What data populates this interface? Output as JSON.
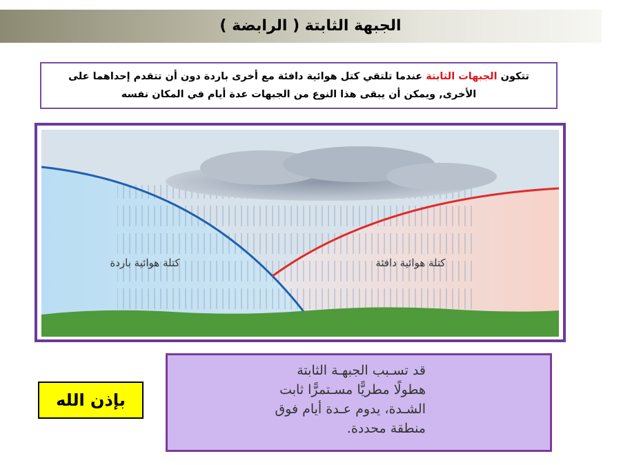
{
  "header": {
    "title": "الجبهة الثابتة ( الرابضة )"
  },
  "intro": {
    "before": "تتكون ",
    "highlight": "الجبهات الثابتة",
    "after": " عندما تلتقي كتل هوائية دافئة مع أخرى باردة دون أن تتقدم إحداهما على الأخرى, ويمكن أن يبقى هذا النوع من الجبهات عدة أيام في المكان نفسه"
  },
  "diagram": {
    "cold_label": "كتلة هوائية باردة",
    "warm_label": "كتلة هوائية دافئة"
  },
  "note": {
    "lines": [
      "قد تسـبب الجبهـة الثابتة",
      "هطولًا مطريًّا مسـتمرًّا ثابت",
      "الشـدة، يدوم عـدة أيام فوق",
      "منطقة محددة."
    ]
  },
  "badge": {
    "text": "بإذن الله"
  }
}
